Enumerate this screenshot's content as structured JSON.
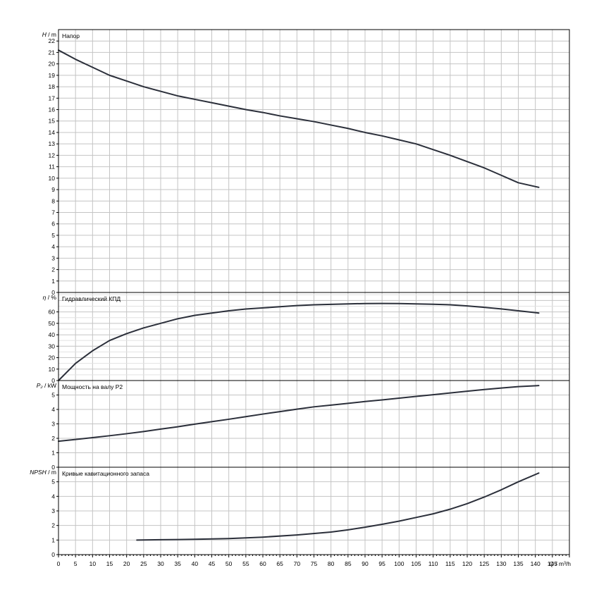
{
  "chart_data": {
    "type": "line",
    "x_axis": {
      "label": "Q / m³/h",
      "min": 0,
      "max": 150,
      "tick_step": 5,
      "tick_labels": [
        "0",
        "5",
        "10",
        "15",
        "20",
        "25",
        "30",
        "35",
        "40",
        "45",
        "50",
        "55",
        "60",
        "65",
        "70",
        "75",
        "80",
        "85",
        "90",
        "95",
        "100",
        "105",
        "110",
        "115",
        "120",
        "125",
        "130",
        "135",
        "140",
        "145"
      ]
    },
    "grid": true,
    "panels": [
      {
        "id": "head",
        "title": "Напор",
        "ylabel_symbol": "H",
        "ylabel_unit": " / m",
        "ylim": [
          0,
          23
        ],
        "tick_step": 1,
        "tick_labels": [
          "0",
          "1",
          "2",
          "3",
          "4",
          "5",
          "6",
          "7",
          "8",
          "9",
          "10",
          "11",
          "12",
          "13",
          "14",
          "15",
          "16",
          "17",
          "18",
          "19",
          "20",
          "21",
          "22"
        ],
        "series": {
          "x": [
            0,
            5,
            10,
            15,
            20,
            25,
            30,
            35,
            40,
            45,
            50,
            55,
            60,
            65,
            70,
            75,
            80,
            85,
            90,
            95,
            100,
            105,
            110,
            115,
            120,
            125,
            130,
            135,
            141
          ],
          "y": [
            21.2,
            20.4,
            19.7,
            19.0,
            18.5,
            18.0,
            17.6,
            17.2,
            16.9,
            16.6,
            16.3,
            16.0,
            15.75,
            15.45,
            15.2,
            14.95,
            14.65,
            14.35,
            14.0,
            13.7,
            13.35,
            13.0,
            12.5,
            12.0,
            11.45,
            10.9,
            10.25,
            9.6,
            9.2
          ]
        }
      },
      {
        "id": "efficiency",
        "title": "Гидравлический КПД",
        "ylabel_symbol": "η",
        "ylabel_unit": " / %",
        "ylim": [
          0,
          77
        ],
        "tick_step": 10,
        "tick_labels": [
          "0",
          "10",
          "20",
          "30",
          "40",
          "50",
          "60"
        ],
        "series": {
          "x": [
            0,
            5,
            10,
            15,
            20,
            25,
            30,
            35,
            40,
            45,
            50,
            55,
            60,
            65,
            70,
            75,
            80,
            85,
            90,
            95,
            100,
            105,
            110,
            115,
            120,
            125,
            130,
            135,
            141
          ],
          "y": [
            0,
            15,
            26,
            35,
            41,
            46,
            50,
            54,
            57,
            59,
            61,
            62.5,
            63.5,
            64.5,
            65.5,
            66.2,
            66.6,
            67,
            67.3,
            67.4,
            67.3,
            67.0,
            66.7,
            66.2,
            65.2,
            64,
            62.6,
            61,
            59
          ]
        }
      },
      {
        "id": "power",
        "title": "Мощность на валу P2",
        "ylabel_symbol": "P₂",
        "ylabel_unit": " / kW",
        "ylim": [
          0,
          6
        ],
        "tick_step": 1,
        "tick_labels": [
          "0",
          "1",
          "2",
          "3",
          "4",
          "5"
        ],
        "series": {
          "x": [
            0,
            5,
            10,
            15,
            20,
            25,
            30,
            35,
            40,
            45,
            50,
            55,
            60,
            65,
            70,
            75,
            80,
            85,
            90,
            95,
            100,
            105,
            110,
            115,
            120,
            125,
            130,
            135,
            141
          ],
          "y": [
            1.8,
            1.92,
            2.05,
            2.18,
            2.32,
            2.47,
            2.64,
            2.8,
            2.98,
            3.15,
            3.32,
            3.5,
            3.68,
            3.85,
            4.02,
            4.18,
            4.3,
            4.42,
            4.55,
            4.66,
            4.78,
            4.9,
            5.02,
            5.14,
            5.26,
            5.38,
            5.48,
            5.58,
            5.65
          ]
        }
      },
      {
        "id": "npsh",
        "title": "Кривые кавитационного запаса",
        "ylabel_symbol": "NPSH",
        "ylabel_unit": " / m",
        "ylim": [
          0,
          6
        ],
        "tick_step": 1,
        "tick_labels": [
          "0",
          "1",
          "2",
          "3",
          "4",
          "5"
        ],
        "series": {
          "x": [
            23,
            30,
            40,
            50,
            60,
            70,
            80,
            85,
            90,
            95,
            100,
            105,
            110,
            115,
            120,
            125,
            130,
            135,
            141
          ],
          "y": [
            1.0,
            1.02,
            1.05,
            1.1,
            1.2,
            1.35,
            1.55,
            1.7,
            1.88,
            2.08,
            2.3,
            2.55,
            2.8,
            3.12,
            3.5,
            3.95,
            4.45,
            5.0,
            5.6
          ]
        }
      }
    ]
  }
}
